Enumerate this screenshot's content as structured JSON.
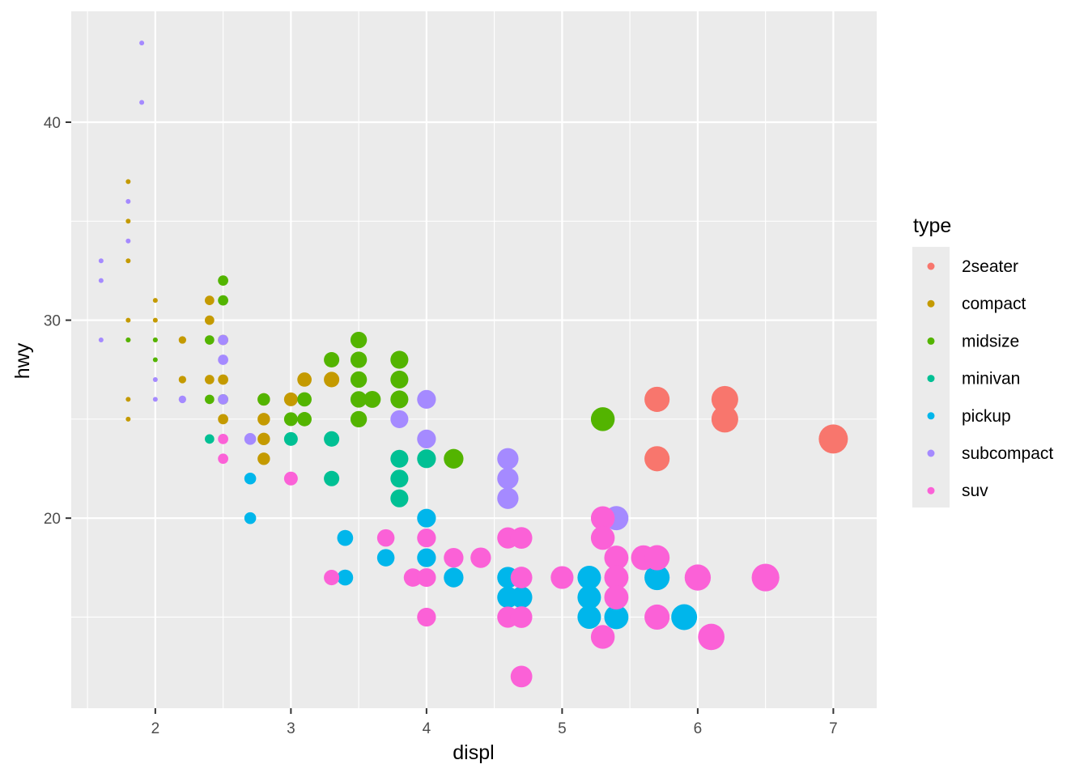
{
  "chart_data": {
    "type": "scatter",
    "title": "",
    "xlabel": "displ",
    "ylabel": "hwy",
    "xlim": [
      1.38,
      7.32
    ],
    "ylim": [
      10.4,
      45.6
    ],
    "x_ticks": [
      2,
      3,
      4,
      5,
      6,
      7
    ],
    "y_ticks": [
      20,
      30,
      40
    ],
    "grid": true,
    "legend": {
      "title": "type",
      "position": "right",
      "entries": [
        {
          "label": "2seater",
          "color": "#F8766D"
        },
        {
          "label": "compact",
          "color": "#C49A00"
        },
        {
          "label": "midsize",
          "color": "#53B400"
        },
        {
          "label": "minivan",
          "color": "#00C094"
        },
        {
          "label": "pickup",
          "color": "#00B6EB"
        },
        {
          "label": "subcompact",
          "color": "#A58AFF"
        },
        {
          "label": "suv",
          "color": "#FB61D7"
        }
      ]
    },
    "size_encodes": "displ",
    "series": [
      {
        "name": "2seater",
        "points": [
          [
            5.7,
            26
          ],
          [
            5.7,
            23
          ],
          [
            6.2,
            26
          ],
          [
            6.2,
            25
          ],
          [
            7.0,
            24
          ]
        ]
      },
      {
        "name": "compact",
        "points": [
          [
            1.8,
            37
          ],
          [
            1.8,
            35
          ],
          [
            1.8,
            33
          ],
          [
            1.8,
            30
          ],
          [
            1.8,
            29
          ],
          [
            1.8,
            26
          ],
          [
            1.8,
            25
          ],
          [
            2.0,
            31
          ],
          [
            2.0,
            30
          ],
          [
            2.0,
            29
          ],
          [
            2.2,
            29
          ],
          [
            2.2,
            27
          ],
          [
            2.4,
            31
          ],
          [
            2.4,
            30
          ],
          [
            2.4,
            27
          ],
          [
            2.5,
            29
          ],
          [
            2.5,
            27
          ],
          [
            2.5,
            25
          ],
          [
            2.8,
            26
          ],
          [
            2.8,
            25
          ],
          [
            2.8,
            24
          ],
          [
            2.8,
            23
          ],
          [
            3.0,
            26
          ],
          [
            3.1,
            27
          ],
          [
            3.3,
            27
          ]
        ]
      },
      {
        "name": "midsize",
        "points": [
          [
            1.8,
            29
          ],
          [
            2.0,
            29
          ],
          [
            2.0,
            28
          ],
          [
            2.4,
            29
          ],
          [
            2.4,
            26
          ],
          [
            2.5,
            32
          ],
          [
            2.5,
            31
          ],
          [
            2.5,
            26
          ],
          [
            2.8,
            26
          ],
          [
            3.0,
            25
          ],
          [
            3.1,
            26
          ],
          [
            3.1,
            25
          ],
          [
            3.3,
            28
          ],
          [
            3.5,
            29
          ],
          [
            3.5,
            28
          ],
          [
            3.5,
            27
          ],
          [
            3.5,
            26
          ],
          [
            3.5,
            25
          ],
          [
            3.6,
            26
          ],
          [
            3.8,
            28
          ],
          [
            3.8,
            27
          ],
          [
            3.8,
            26
          ],
          [
            4.2,
            23
          ],
          [
            5.3,
            25
          ]
        ]
      },
      {
        "name": "minivan",
        "points": [
          [
            2.4,
            24
          ],
          [
            3.0,
            24
          ],
          [
            3.3,
            24
          ],
          [
            3.3,
            22
          ],
          [
            3.8,
            23
          ],
          [
            3.8,
            22
          ],
          [
            3.8,
            21
          ],
          [
            4.0,
            23
          ]
        ]
      },
      {
        "name": "pickup",
        "points": [
          [
            2.7,
            22
          ],
          [
            2.7,
            20
          ],
          [
            3.4,
            19
          ],
          [
            3.4,
            17
          ],
          [
            3.7,
            18
          ],
          [
            4.0,
            20
          ],
          [
            4.0,
            18
          ],
          [
            4.2,
            17
          ],
          [
            4.6,
            17
          ],
          [
            4.6,
            16
          ],
          [
            4.7,
            16
          ],
          [
            5.2,
            17
          ],
          [
            5.2,
            16
          ],
          [
            5.2,
            15
          ],
          [
            5.4,
            15
          ],
          [
            5.7,
            17
          ],
          [
            5.9,
            15
          ]
        ]
      },
      {
        "name": "subcompact",
        "points": [
          [
            1.6,
            33
          ],
          [
            1.6,
            32
          ],
          [
            1.6,
            29
          ],
          [
            1.8,
            36
          ],
          [
            1.8,
            34
          ],
          [
            1.9,
            44
          ],
          [
            1.9,
            41
          ],
          [
            2.0,
            27
          ],
          [
            2.0,
            26
          ],
          [
            2.2,
            26
          ],
          [
            2.5,
            29
          ],
          [
            2.5,
            28
          ],
          [
            2.5,
            26
          ],
          [
            2.7,
            24
          ],
          [
            3.8,
            25
          ],
          [
            4.0,
            26
          ],
          [
            4.0,
            24
          ],
          [
            4.6,
            23
          ],
          [
            4.6,
            22
          ],
          [
            4.6,
            21
          ],
          [
            5.4,
            20
          ]
        ]
      },
      {
        "name": "suv",
        "points": [
          [
            2.5,
            24
          ],
          [
            2.5,
            23
          ],
          [
            3.0,
            22
          ],
          [
            3.3,
            17
          ],
          [
            3.7,
            19
          ],
          [
            3.9,
            17
          ],
          [
            4.0,
            19
          ],
          [
            4.0,
            17
          ],
          [
            4.0,
            15
          ],
          [
            4.2,
            18
          ],
          [
            4.4,
            18
          ],
          [
            4.6,
            19
          ],
          [
            4.6,
            15
          ],
          [
            4.7,
            19
          ],
          [
            4.7,
            17
          ],
          [
            4.7,
            15
          ],
          [
            4.7,
            12
          ],
          [
            5.0,
            17
          ],
          [
            5.3,
            20
          ],
          [
            5.3,
            19
          ],
          [
            5.3,
            14
          ],
          [
            5.4,
            18
          ],
          [
            5.4,
            17
          ],
          [
            5.4,
            16
          ],
          [
            5.6,
            18
          ],
          [
            5.7,
            18
          ],
          [
            5.7,
            15
          ],
          [
            6.0,
            17
          ],
          [
            6.1,
            14
          ],
          [
            6.5,
            17
          ]
        ]
      }
    ]
  }
}
